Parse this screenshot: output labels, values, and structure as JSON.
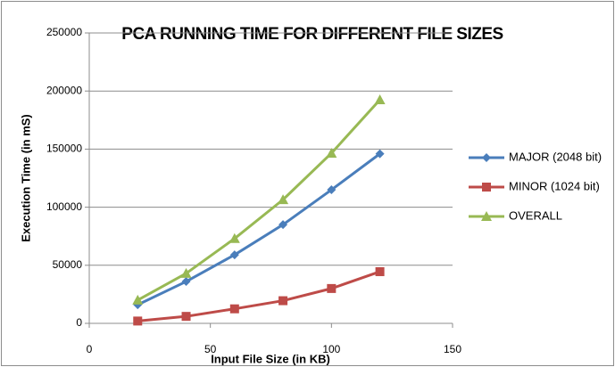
{
  "chart_data": {
    "type": "line",
    "title": "PCA RUNNING TIME FOR DIFFERENT FILE SIZES",
    "x_label": "Input File Size (in KB)",
    "y_label": "Execution Time (in mS)",
    "x": [
      20,
      40,
      60,
      80,
      100,
      120
    ],
    "series": [
      {
        "name": "MAJOR (2048 bit)",
        "color": "#4a7ebb",
        "marker": "diamond",
        "values": [
          16000,
          36000,
          59000,
          85000,
          115000,
          146000
        ]
      },
      {
        "name": "MINOR (1024 bit)",
        "color": "#be4b48",
        "marker": "square",
        "values": [
          2000,
          6000,
          12500,
          19500,
          30000,
          44500
        ]
      },
      {
        "name": "OVERALL",
        "color": "#98b954",
        "marker": "triangle",
        "values": [
          20000,
          43000,
          73000,
          106500,
          146500,
          192500
        ]
      }
    ],
    "xlim": [
      0,
      150
    ],
    "xticks": [
      0,
      50,
      100,
      150
    ],
    "ylim": [
      0,
      250000
    ],
    "yticks": [
      0,
      50000,
      100000,
      150000,
      200000,
      250000
    ],
    "grid": true,
    "legend": "right"
  }
}
